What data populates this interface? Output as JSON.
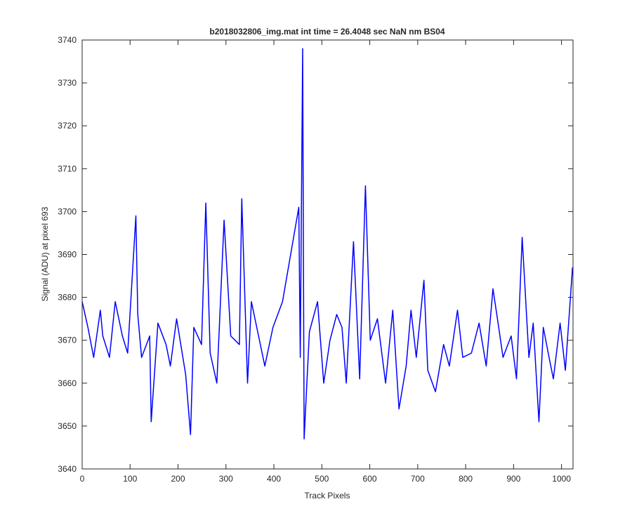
{
  "chart_data": {
    "type": "line",
    "title": "b2018032806_img.mat int time = 26.4048 sec  NaN nm BS04",
    "xlabel": "Track Pixels",
    "ylabel": "Signal (ADU) at pixel 693",
    "xlim": [
      0,
      1024
    ],
    "ylim": [
      3640,
      3740
    ],
    "xticks": [
      0,
      100,
      200,
      300,
      400,
      500,
      600,
      700,
      800,
      900,
      1000
    ],
    "yticks": [
      3640,
      3650,
      3660,
      3670,
      3680,
      3690,
      3700,
      3710,
      3720,
      3730,
      3740
    ],
    "grid": false,
    "series": [
      {
        "color": "#0000ff",
        "x": [
          0,
          12,
          24,
          38,
          43,
          57,
          69,
          84,
          95,
          112,
          116,
          124,
          141,
          144,
          158,
          175,
          184,
          197,
          216,
          226,
          233,
          249,
          258,
          267,
          281,
          296,
          310,
          328,
          333,
          345,
          353,
          368,
          381,
          398,
          418,
          452,
          455,
          460,
          463,
          474,
          491,
          504,
          517,
          531,
          542,
          551,
          566,
          579,
          591,
          601,
          616,
          633,
          648,
          661,
          676,
          686,
          697,
          713,
          721,
          737,
          754,
          766,
          783,
          794,
          812,
          828,
          843,
          857,
          869,
          878,
          895,
          906,
          918,
          932,
          941,
          953,
          962,
          974,
          983,
          997,
          1008,
          1023
        ],
        "y": [
          3679,
          3673,
          3666,
          3677,
          3671,
          3666,
          3679,
          3671,
          3667,
          3699,
          3676,
          3666,
          3671,
          3651,
          3674,
          3669,
          3664,
          3675,
          3662,
          3648,
          3673,
          3669,
          3702,
          3667,
          3660,
          3698,
          3671,
          3669,
          3703,
          3660,
          3679,
          3671,
          3664,
          3673,
          3679,
          3701,
          3666,
          3738,
          3647,
          3672,
          3679,
          3660,
          3670,
          3676,
          3673,
          3660,
          3693,
          3661,
          3706,
          3670,
          3675,
          3660,
          3677,
          3654,
          3664,
          3677,
          3666,
          3684,
          3663,
          3658,
          3669,
          3664,
          3677,
          3666,
          3667,
          3674,
          3664,
          3682,
          3673,
          3666,
          3671,
          3661,
          3694,
          3666,
          3674,
          3651,
          3673,
          3666,
          3661,
          3674,
          3663,
          3687
        ]
      }
    ]
  }
}
